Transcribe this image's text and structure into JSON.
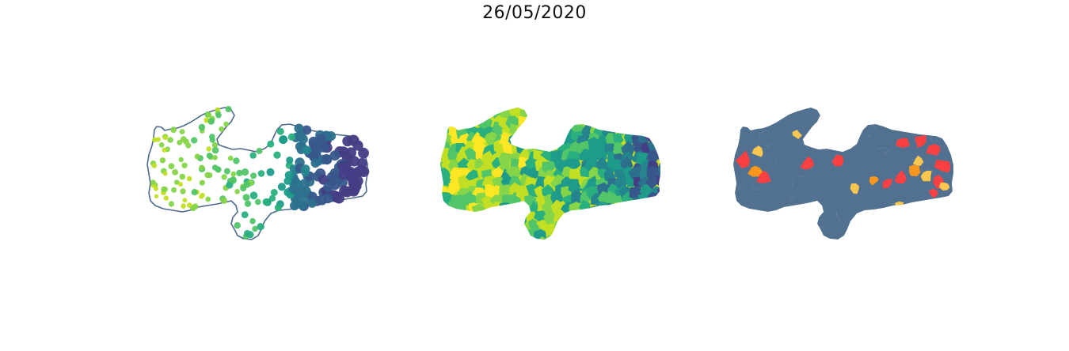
{
  "title": "26/05/2020",
  "colors": {
    "outline": "#4d6a8c",
    "viridis": [
      "#fde725",
      "#c2df23",
      "#86d549",
      "#52c569",
      "#2ab07f",
      "#1e9b8a",
      "#25858e",
      "#2d708e",
      "#38588c",
      "#433e85"
    ],
    "base_map": "#52708f",
    "categories": [
      "#f9c74f",
      "#f8961e",
      "#f94144"
    ]
  },
  "panels": [
    {
      "name": "bubble-map",
      "type": "proportional-symbols"
    },
    {
      "name": "choropleth-map",
      "type": "choropleth"
    },
    {
      "name": "category-map",
      "type": "categorical"
    }
  ]
}
